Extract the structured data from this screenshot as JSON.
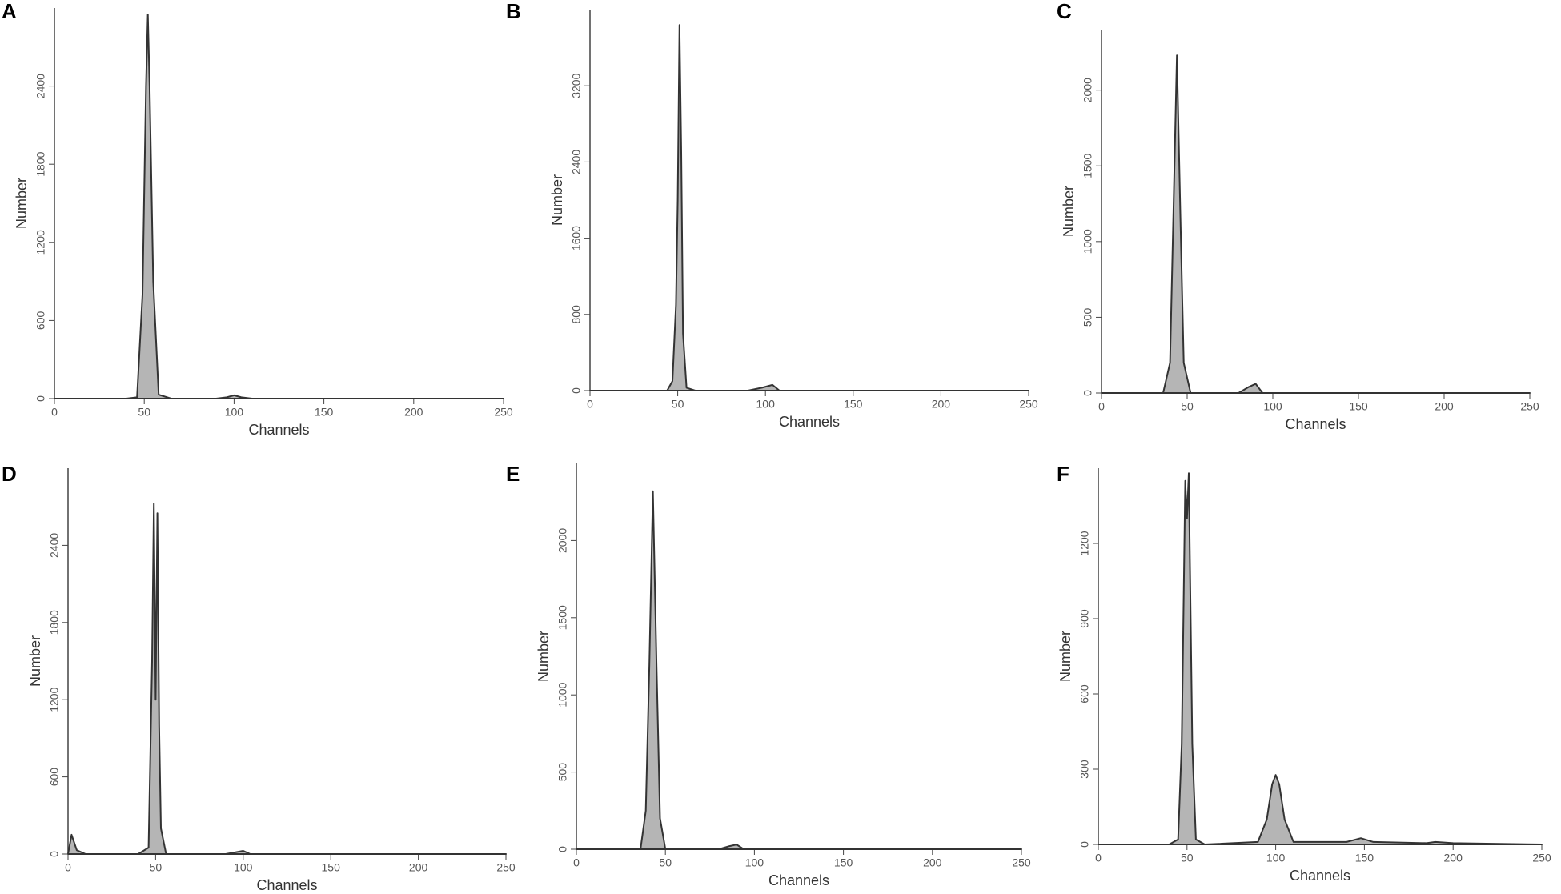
{
  "chart_data": [
    {
      "type": "line",
      "title": "A",
      "x_label": "Channels",
      "y_label": "Number",
      "x": [
        0,
        20,
        40,
        46,
        49,
        51,
        52,
        53,
        55,
        58,
        65,
        90,
        96,
        100,
        104,
        110,
        150,
        200,
        250
      ],
      "values": [
        0,
        0,
        0,
        10,
        800,
        2400,
        2950,
        2400,
        900,
        30,
        0,
        0,
        10,
        25,
        10,
        0,
        0,
        0,
        0
      ],
      "xlim": [
        0,
        250
      ],
      "xticks": [
        0,
        50,
        100,
        150,
        200,
        250
      ],
      "ylim": [
        0,
        3000
      ],
      "yticks": [
        0,
        600,
        1200,
        1800,
        2400
      ],
      "color": "#333333"
    },
    {
      "type": "line",
      "title": "B",
      "x_label": "Channels",
      "y_label": "Number",
      "x": [
        0,
        30,
        44,
        47,
        49,
        50,
        51,
        52,
        53,
        55,
        60,
        90,
        98,
        104,
        108,
        150,
        200,
        250
      ],
      "values": [
        0,
        0,
        0,
        100,
        900,
        2000,
        3838,
        2500,
        600,
        30,
        0,
        0,
        30,
        60,
        0,
        0,
        0,
        0
      ],
      "xlim": [
        0,
        250
      ],
      "xticks": [
        0,
        50,
        100,
        150,
        200,
        250
      ],
      "ylim": [
        0,
        4000
      ],
      "yticks": [
        0,
        800,
        1600,
        2400,
        3200
      ],
      "color": "#333333"
    },
    {
      "type": "line",
      "title": "C",
      "x_label": "Channels",
      "y_label": "Number",
      "x": [
        0,
        20,
        36,
        40,
        42,
        44,
        46,
        48,
        52,
        80,
        86,
        90,
        94,
        150,
        200,
        250
      ],
      "values": [
        0,
        0,
        0,
        200,
        1200,
        2230,
        1200,
        200,
        0,
        0,
        40,
        60,
        0,
        0,
        0,
        0
      ],
      "xlim": [
        0,
        250
      ],
      "xticks": [
        0,
        50,
        100,
        150,
        200,
        250
      ],
      "ylim": [
        0,
        2400
      ],
      "yticks": [
        0,
        500,
        1000,
        1500,
        2000
      ],
      "color": "#333333"
    },
    {
      "type": "line",
      "title": "D",
      "x_label": "Channels",
      "y_label": "Number",
      "x": [
        0,
        2,
        5,
        10,
        40,
        46,
        48,
        49,
        50,
        51,
        52,
        53,
        56,
        90,
        96,
        100,
        104,
        150,
        200,
        250
      ],
      "values": [
        0,
        150,
        30,
        0,
        0,
        50,
        1500,
        2725,
        1200,
        2650,
        1000,
        200,
        0,
        0,
        15,
        25,
        0,
        0,
        0,
        0
      ],
      "xlim": [
        0,
        250
      ],
      "xticks": [
        0,
        50,
        100,
        150,
        200,
        250
      ],
      "ylim": [
        0,
        3000
      ],
      "yticks": [
        0,
        600,
        1200,
        1800,
        2400
      ],
      "color": "#333333"
    },
    {
      "type": "line",
      "title": "E",
      "x_label": "Channels",
      "y_label": "Number",
      "x": [
        0,
        30,
        36,
        39,
        41,
        43,
        45,
        47,
        50,
        80,
        86,
        90,
        94,
        150,
        200,
        250
      ],
      "values": [
        0,
        0,
        0,
        250,
        1200,
        2320,
        1200,
        200,
        0,
        0,
        20,
        30,
        0,
        0,
        0,
        0
      ],
      "xlim": [
        0,
        250
      ],
      "xticks": [
        0,
        50,
        100,
        150,
        200,
        250
      ],
      "ylim": [
        0,
        2500
      ],
      "yticks": [
        0,
        500,
        1000,
        1500,
        2000
      ],
      "color": "#333333"
    },
    {
      "type": "line",
      "title": "F",
      "x_label": "Channels",
      "y_label": "Number",
      "x": [
        0,
        40,
        45,
        47,
        49,
        50,
        51,
        53,
        55,
        60,
        90,
        95,
        98,
        100,
        102,
        105,
        110,
        140,
        148,
        155,
        185,
        190,
        200,
        250
      ],
      "values": [
        0,
        0,
        20,
        400,
        1450,
        1300,
        1480,
        400,
        20,
        0,
        10,
        100,
        240,
        277,
        240,
        100,
        10,
        10,
        25,
        10,
        5,
        10,
        5,
        0
      ],
      "xlim": [
        0,
        250
      ],
      "xticks": [
        0,
        50,
        100,
        150,
        200,
        250
      ],
      "ylim": [
        0,
        1500
      ],
      "yticks": [
        0,
        300,
        600,
        900,
        1200
      ],
      "color": "#333333"
    }
  ]
}
